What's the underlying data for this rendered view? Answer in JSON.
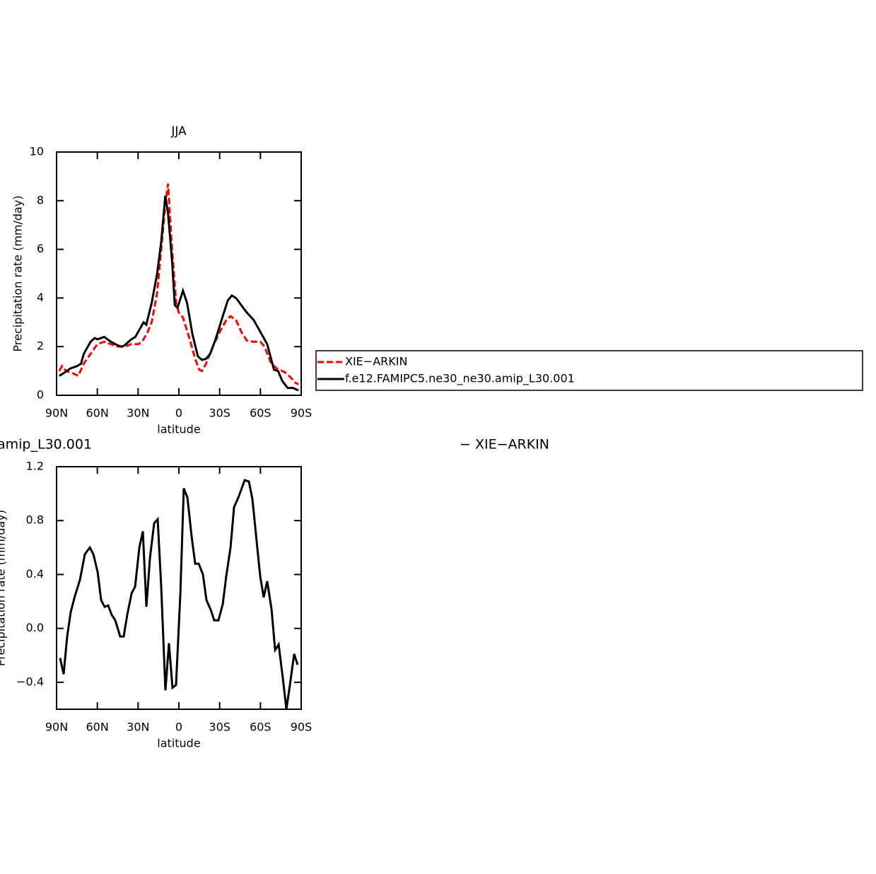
{
  "chart_data": [
    {
      "type": "line",
      "title": "JJA",
      "xlabel": "latitude",
      "ylabel": "Precipitation rate (mm/day)",
      "xlim": [
        90,
        -90
      ],
      "ylim": [
        0,
        10
      ],
      "xticks": [
        {
          "value": 90,
          "label": "90N"
        },
        {
          "value": 60,
          "label": "60N"
        },
        {
          "value": 30,
          "label": "30N"
        },
        0,
        {
          "value": -30,
          "label": "30S"
        },
        {
          "value": -60,
          "label": "60S"
        },
        {
          "value": -90,
          "label": "90S"
        }
      ],
      "yticks": [
        0,
        2,
        4,
        6,
        8,
        10
      ],
      "legend": "right",
      "series": [
        {
          "name": "XIE−ARKIN",
          "color": "#ff0000",
          "dashed": true,
          "x": [
            88,
            86,
            83,
            78,
            74,
            70,
            65,
            60,
            55,
            50,
            45,
            40,
            35,
            30,
            27,
            23,
            20,
            16,
            13,
            10,
            8,
            5,
            2,
            0,
            -3,
            -8,
            -12,
            -15,
            -17,
            -20,
            -25,
            -30,
            -35,
            -38,
            -42,
            -46,
            -50,
            -55,
            -60,
            -63,
            -68,
            -72,
            -78,
            -82,
            -86,
            -88
          ],
          "values": [
            1.0,
            1.2,
            1.0,
            0.9,
            0.8,
            1.3,
            1.7,
            2.1,
            2.2,
            2.1,
            2.0,
            2.0,
            2.1,
            2.1,
            2.2,
            2.6,
            3.0,
            4.2,
            6.0,
            7.8,
            8.7,
            6.0,
            3.8,
            3.4,
            3.2,
            2.3,
            1.5,
            1.05,
            1.0,
            1.3,
            2.0,
            2.6,
            3.1,
            3.25,
            3.1,
            2.6,
            2.25,
            2.2,
            2.2,
            2.0,
            1.3,
            1.1,
            0.95,
            0.75,
            0.5,
            0.45
          ]
        },
        {
          "name": "f.e12.FAMIPC5.ne30_ne30.amip_L30.001",
          "color": "#000000",
          "dashed": false,
          "x": [
            88,
            85,
            80,
            75,
            72,
            70,
            67,
            65,
            62,
            60,
            55,
            50,
            45,
            42,
            40,
            35,
            32,
            28,
            26,
            24,
            20,
            16,
            13,
            10,
            8,
            5,
            3,
            1,
            -3,
            -6,
            -10,
            -14,
            -17,
            -20,
            -23,
            -27,
            -32,
            -36,
            -39,
            -42,
            -46,
            -50,
            -55,
            -60,
            -65,
            -70,
            -73,
            -76,
            -80,
            -84,
            -88
          ],
          "values": [
            0.8,
            0.9,
            1.1,
            1.2,
            1.3,
            1.7,
            2.0,
            2.2,
            2.35,
            2.3,
            2.4,
            2.2,
            2.05,
            2.0,
            2.05,
            2.3,
            2.4,
            2.8,
            3.0,
            2.9,
            3.8,
            5.0,
            6.3,
            8.2,
            7.5,
            5.5,
            3.7,
            3.6,
            4.3,
            3.8,
            2.5,
            1.6,
            1.45,
            1.5,
            1.7,
            2.3,
            3.2,
            3.9,
            4.1,
            4.0,
            3.7,
            3.4,
            3.1,
            2.6,
            2.1,
            1.05,
            1.0,
            0.6,
            0.3,
            0.3,
            0.2
          ]
        }
      ]
    },
    {
      "type": "line",
      "title_left": "amip_L30.001",
      "title_right": "− XIE−ARKIN",
      "xlabel": "latitude",
      "ylabel": "Precipitation rate (mm/day)",
      "xlim": [
        90,
        -90
      ],
      "ylim": [
        -0.6,
        1.2
      ],
      "xticks": [
        {
          "value": 90,
          "label": "90N"
        },
        {
          "value": 60,
          "label": "60N"
        },
        {
          "value": 30,
          "label": "30N"
        },
        0,
        {
          "value": -30,
          "label": "30S"
        },
        {
          "value": -60,
          "label": "60S"
        },
        {
          "value": -90,
          "label": "90S"
        }
      ],
      "yticks": [
        {
          "value": -0.4,
          "label": "−0.4"
        },
        {
          "value": 0,
          "label": "0.0"
        },
        0.4,
        0.8,
        1.2
      ],
      "series": [
        {
          "color": "#000000",
          "dashed": false,
          "x": [
            87.4,
            84.8,
            82.2,
            79.6,
            76.5,
            72.8,
            69.2,
            65.5,
            62.9,
            59.8,
            57.2,
            54.6,
            52.0,
            49.4,
            46.8,
            43.2,
            40.6,
            38.0,
            34.8,
            32.2,
            29.1,
            26.5,
            23.9,
            21.3,
            18.2,
            15.6,
            13.0,
            9.9,
            7.3,
            4.7,
            2.1,
            -1.1,
            -3.6,
            -6.3,
            -9.4,
            -12.0,
            -14.6,
            -17.7,
            -20.3,
            -23.4,
            -26.0,
            -29.1,
            -32.3,
            -34.9,
            -38.0,
            -40.6,
            -43.7,
            -46.3,
            -48.4,
            -51.5,
            -54.1,
            -56.7,
            -59.8,
            -62.4,
            -65.0,
            -68.2,
            -70.8,
            -73.4,
            -76.5,
            -79.1,
            -81.7,
            -84.8,
            -87.4
          ],
          "values": [
            -0.22,
            -0.34,
            -0.06,
            0.12,
            0.24,
            0.36,
            0.55,
            0.6,
            0.55,
            0.42,
            0.21,
            0.16,
            0.17,
            0.1,
            0.06,
            -0.06,
            -0.06,
            0.1,
            0.26,
            0.31,
            0.6,
            0.72,
            0.16,
            0.52,
            0.78,
            0.81,
            0.31,
            -0.46,
            -0.11,
            -0.44,
            -0.42,
            0.26,
            1.04,
            0.97,
            0.68,
            0.48,
            0.48,
            0.4,
            0.21,
            0.14,
            0.06,
            0.06,
            0.18,
            0.39,
            0.6,
            0.9,
            0.97,
            1.04,
            1.1,
            1.09,
            0.96,
            0.7,
            0.39,
            0.23,
            0.35,
            0.14,
            -0.16,
            -0.12,
            -0.37,
            -0.6,
            -0.42,
            -0.19,
            -0.27
          ]
        }
      ]
    }
  ]
}
